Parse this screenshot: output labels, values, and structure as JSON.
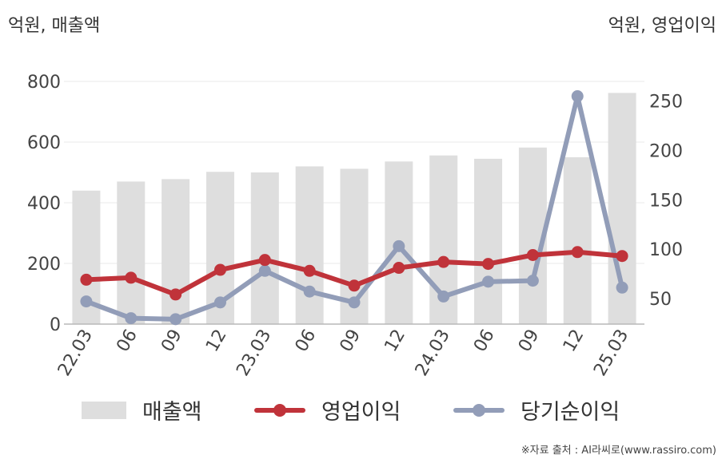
{
  "unit_left": "억원, 매출액",
  "unit_right": "억원, 영업이익",
  "source": "※자료 출처 : AI라씨로(www.rassiro.com)",
  "chart_data": {
    "type": "bar+line",
    "categories": [
      "22.03",
      "06",
      "09",
      "12",
      "23.03",
      "06",
      "09",
      "12",
      "24.03",
      "06",
      "09",
      "12",
      "25.03"
    ],
    "y_left": {
      "label": "억원, 매출액",
      "ticks": [
        0,
        200,
        400,
        600,
        800
      ],
      "range": [
        0,
        800
      ]
    },
    "y_right": {
      "label": "억원, 영업이익",
      "ticks": [
        50,
        100,
        150,
        200,
        250
      ],
      "range": [
        24,
        270
      ]
    },
    "grid": true,
    "legend_position": "bottom",
    "series": [
      {
        "name": "매출액",
        "type": "bar",
        "axis": "left",
        "color": "#dedede",
        "values": [
          440,
          470,
          478,
          502,
          500,
          520,
          512,
          536,
          556,
          545,
          582,
          550,
          762
        ]
      },
      {
        "name": "영업이익",
        "type": "line",
        "axis": "right",
        "color": "#c0333a",
        "values": [
          69,
          71,
          54,
          79,
          89,
          78,
          63,
          81,
          87,
          85,
          94,
          97,
          93
        ]
      },
      {
        "name": "당기순이익",
        "type": "line",
        "axis": "right",
        "color": "#929db8",
        "values": [
          47,
          30,
          29,
          46,
          78,
          57,
          46,
          103,
          52,
          67,
          68,
          255,
          61
        ]
      }
    ]
  }
}
